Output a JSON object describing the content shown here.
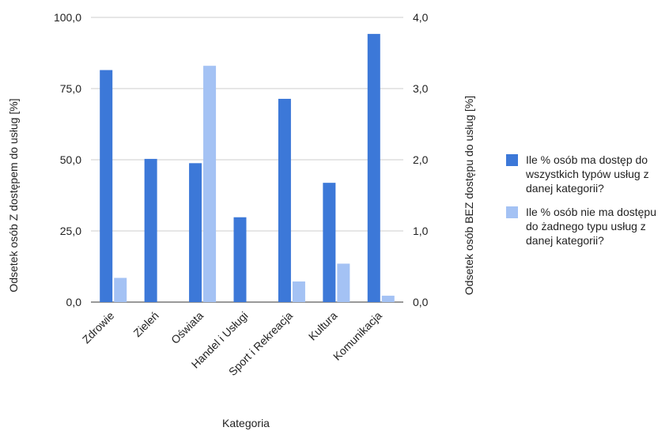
{
  "chart_data": {
    "type": "bar",
    "categories": [
      "Zdrowie",
      "Zieleń",
      "Oświata",
      "Handel i Usługi",
      "Sport i Rekreacja",
      "Kultura",
      "Komunikacja"
    ],
    "series": [
      {
        "name": "Ile % osób ma dostęp do wszystkich typów usług z danej kategorii?",
        "axis": "left",
        "color": "#3c78d8",
        "values": [
          81.5,
          50.3,
          48.8,
          29.8,
          71.4,
          41.9,
          94.2
        ]
      },
      {
        "name": "Ile % osób nie ma dostępu do żadnego typu usług z danej kategorii?",
        "axis": "right",
        "color": "#a4c2f4",
        "values": [
          0.34,
          0.0,
          3.32,
          0.0,
          0.29,
          0.54,
          0.09
        ]
      }
    ],
    "xlabel": "Kategoria",
    "ylabel": "Odsetek osób Z dostępem do usług [%]",
    "y2label": "Odsetek osób BEZ dostępu do usług [%]",
    "ylim": [
      0,
      100
    ],
    "y2lim": [
      0,
      4
    ],
    "yticks": [
      "0,0",
      "25,0",
      "50,0",
      "75,0",
      "100,0"
    ],
    "y2ticks": [
      "0,0",
      "1,0",
      "2,0",
      "3,0",
      "4,0"
    ],
    "grid": true,
    "legend_position": "right"
  }
}
